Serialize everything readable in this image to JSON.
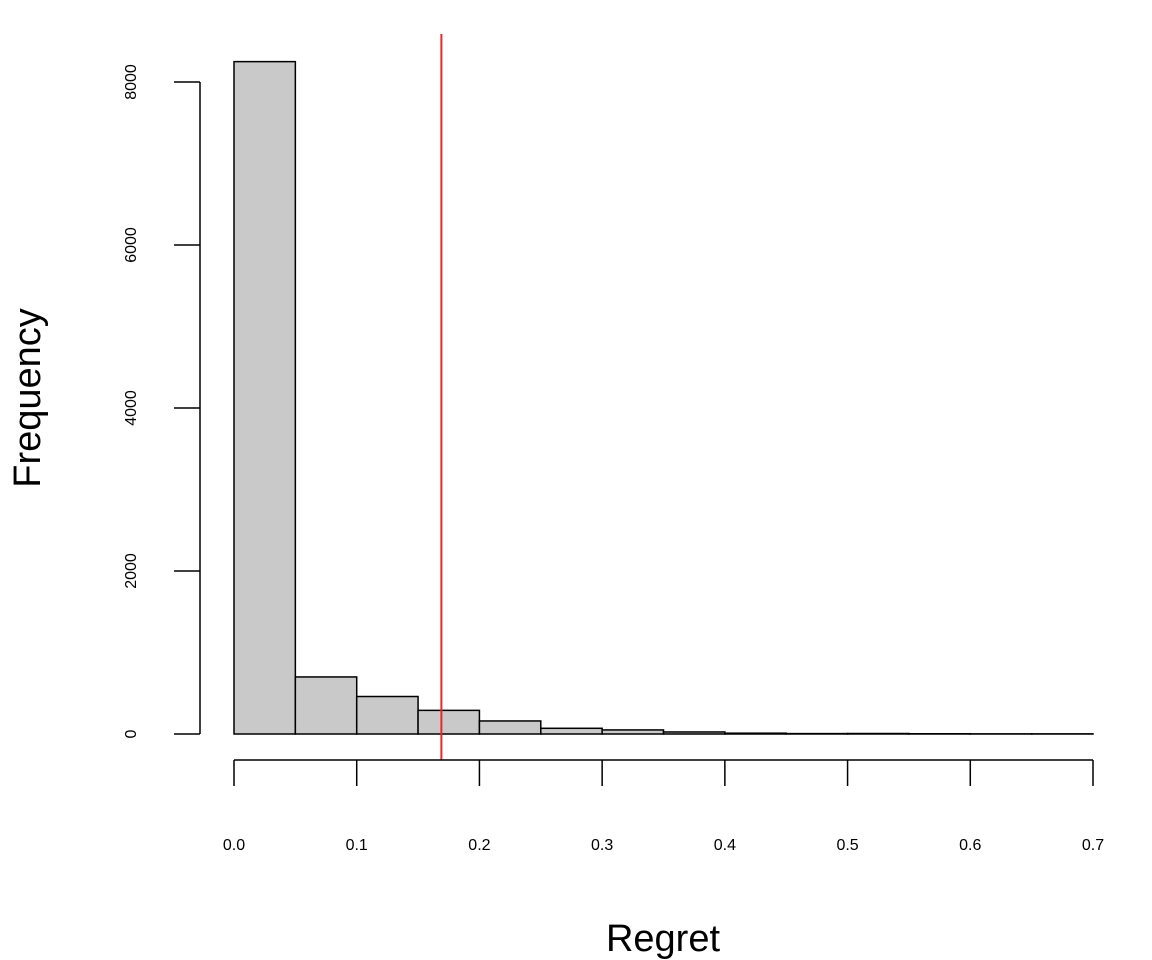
{
  "chart_data": {
    "type": "histogram",
    "title": "",
    "xlabel": "Regret",
    "ylabel": "Frequency",
    "bin_width": 0.05,
    "bins": [
      {
        "start": 0.0,
        "end": 0.05,
        "count": 8250
      },
      {
        "start": 0.05,
        "end": 0.1,
        "count": 700
      },
      {
        "start": 0.1,
        "end": 0.15,
        "count": 460
      },
      {
        "start": 0.15,
        "end": 0.2,
        "count": 290
      },
      {
        "start": 0.2,
        "end": 0.25,
        "count": 160
      },
      {
        "start": 0.25,
        "end": 0.3,
        "count": 70
      },
      {
        "start": 0.3,
        "end": 0.35,
        "count": 50
      },
      {
        "start": 0.35,
        "end": 0.4,
        "count": 25
      },
      {
        "start": 0.4,
        "end": 0.45,
        "count": 10
      },
      {
        "start": 0.45,
        "end": 0.5,
        "count": 5
      },
      {
        "start": 0.5,
        "end": 0.55,
        "count": 6
      },
      {
        "start": 0.55,
        "end": 0.6,
        "count": 3
      },
      {
        "start": 0.6,
        "end": 0.65,
        "count": 2
      },
      {
        "start": 0.65,
        "end": 0.7,
        "count": 2
      }
    ],
    "xlim": [
      0,
      0.7
    ],
    "ylim": [
      0,
      8000
    ],
    "x_ticks": [
      {
        "value": 0.0,
        "label": "0.0"
      },
      {
        "value": 0.1,
        "label": "0.1"
      },
      {
        "value": 0.2,
        "label": "0.2"
      },
      {
        "value": 0.3,
        "label": "0.3"
      },
      {
        "value": 0.4,
        "label": "0.4"
      },
      {
        "value": 0.5,
        "label": "0.5"
      },
      {
        "value": 0.6,
        "label": "0.6"
      },
      {
        "value": 0.7,
        "label": "0.7"
      }
    ],
    "y_ticks": [
      {
        "value": 0,
        "label": "0"
      },
      {
        "value": 2000,
        "label": "2000"
      },
      {
        "value": 4000,
        "label": "4000"
      },
      {
        "value": 6000,
        "label": "6000"
      },
      {
        "value": 8000,
        "label": "8000"
      }
    ],
    "reference_line": {
      "x": 0.169,
      "color": "#e8282b"
    },
    "bar_fill": "#c9c9c9",
    "bar_stroke": "#000000",
    "grid": false,
    "legend": "none"
  }
}
